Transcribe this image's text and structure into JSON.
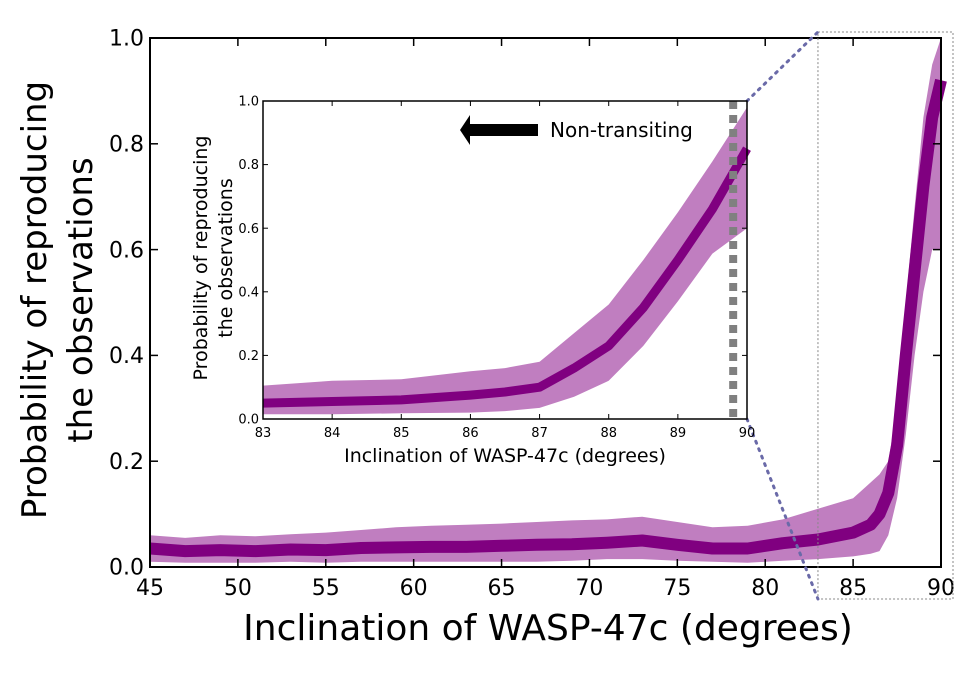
{
  "chart_data": [
    {
      "id": "main",
      "type": "line",
      "xlabel": "Inclination of WASP-47c (degrees)",
      "ylabel_line1": "Probability of reproducing",
      "ylabel_line2": "the observations",
      "xlim": [
        45,
        90
      ],
      "ylim": [
        0.0,
        1.0
      ],
      "xticks": [
        45,
        50,
        55,
        60,
        65,
        70,
        75,
        80,
        85,
        90
      ],
      "xtick_labels": [
        "45",
        "50",
        "55",
        "60",
        "65",
        "70",
        "75",
        "80",
        "85",
        "90"
      ],
      "yticks": [
        0.0,
        0.2,
        0.4,
        0.6,
        0.8,
        1.0
      ],
      "ytick_labels": [
        "0.0",
        "0.2",
        "0.4",
        "0.6",
        "0.8",
        "1.0"
      ],
      "series": [
        {
          "name": "probability",
          "color": "#800080",
          "band_color": "#c07ec0",
          "x": [
            45,
            47,
            49,
            51,
            53,
            55,
            57,
            59,
            61,
            63,
            65,
            67,
            69,
            71,
            73,
            75,
            77,
            79,
            81,
            83,
            85,
            86,
            86.5,
            87,
            87.5,
            88,
            88.5,
            89,
            89.5,
            90
          ],
          "y": [
            0.035,
            0.03,
            0.032,
            0.03,
            0.033,
            0.032,
            0.036,
            0.037,
            0.038,
            0.038,
            0.04,
            0.042,
            0.043,
            0.046,
            0.05,
            0.042,
            0.035,
            0.035,
            0.045,
            0.052,
            0.065,
            0.08,
            0.1,
            0.14,
            0.23,
            0.4,
            0.56,
            0.72,
            0.85,
            0.92
          ],
          "upper": [
            0.06,
            0.055,
            0.06,
            0.058,
            0.062,
            0.065,
            0.07,
            0.075,
            0.078,
            0.08,
            0.082,
            0.085,
            0.088,
            0.09,
            0.095,
            0.085,
            0.075,
            0.078,
            0.09,
            0.11,
            0.13,
            0.16,
            0.175,
            0.2,
            0.3,
            0.5,
            0.68,
            0.85,
            0.95,
            1.0
          ],
          "lower": [
            0.01,
            0.008,
            0.008,
            0.008,
            0.01,
            0.008,
            0.01,
            0.01,
            0.01,
            0.01,
            0.01,
            0.01,
            0.012,
            0.015,
            0.015,
            0.012,
            0.01,
            0.008,
            0.012,
            0.015,
            0.02,
            0.025,
            0.03,
            0.06,
            0.13,
            0.25,
            0.4,
            0.52,
            0.6,
            0.6
          ]
        }
      ],
      "inset_region_xlim": [
        83,
        90
      ]
    },
    {
      "id": "inset",
      "type": "line",
      "xlabel": "Inclination of WASP-47c (degrees)",
      "ylabel_line1": "Probability of reproducing",
      "ylabel_line2": "the observations",
      "xlim": [
        83,
        90
      ],
      "ylim": [
        0.0,
        1.0
      ],
      "xticks": [
        83,
        84,
        85,
        86,
        87,
        88,
        89,
        90
      ],
      "xtick_labels": [
        "83",
        "84",
        "85",
        "86",
        "87",
        "88",
        "89",
        "90"
      ],
      "yticks": [
        0.0,
        0.2,
        0.4,
        0.6,
        0.8,
        1.0
      ],
      "ytick_labels": [
        "0.0",
        "0.2",
        "0.4",
        "0.6",
        "0.8",
        "1.0"
      ],
      "series": [
        {
          "name": "probability",
          "color": "#800080",
          "band_color": "#c07ec0",
          "x": [
            83,
            84,
            85,
            86,
            86.5,
            87,
            87.5,
            88,
            88.5,
            89,
            89.5,
            90
          ],
          "y": [
            0.05,
            0.055,
            0.06,
            0.075,
            0.085,
            0.1,
            0.16,
            0.23,
            0.35,
            0.5,
            0.66,
            0.85
          ],
          "upper": [
            0.105,
            0.12,
            0.125,
            0.15,
            0.16,
            0.18,
            0.27,
            0.36,
            0.5,
            0.65,
            0.81,
            0.98
          ],
          "lower": [
            0.015,
            0.015,
            0.018,
            0.02,
            0.025,
            0.035,
            0.07,
            0.12,
            0.23,
            0.37,
            0.52,
            0.6
          ]
        }
      ],
      "vline": {
        "x": 89.8,
        "color": "#808080",
        "style": "dotted"
      },
      "annotation": {
        "text": "Non-transiting",
        "arrow_direction": "left"
      }
    }
  ]
}
